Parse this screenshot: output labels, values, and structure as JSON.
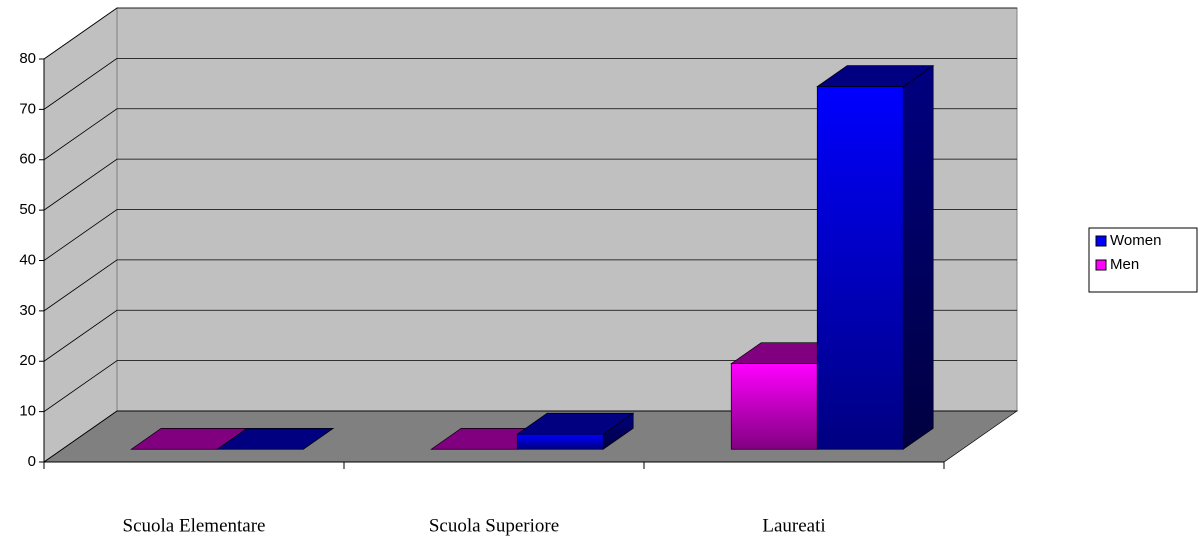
{
  "chart_data": {
    "type": "bar3d",
    "categories": [
      "Scuola Elementare",
      "Scuola Superiore",
      "Laureati"
    ],
    "series": [
      {
        "name": "Men",
        "color": "#ff00ff",
        "values": [
          0,
          0,
          17
        ]
      },
      {
        "name": "Women",
        "color": "#0000ff",
        "values": [
          0,
          3,
          72
        ]
      }
    ],
    "ylim": [
      0,
      80
    ],
    "yticks": [
      0,
      10,
      20,
      30,
      40,
      50,
      60,
      70,
      80
    ],
    "grid": true,
    "legend": "right"
  }
}
